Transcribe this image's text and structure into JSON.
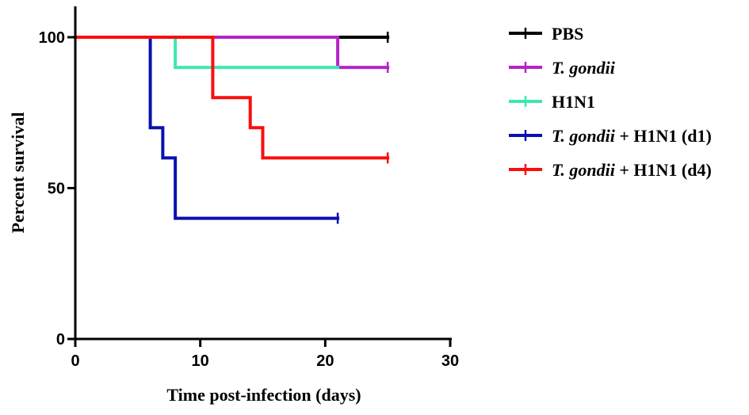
{
  "chart_data": {
    "type": "line",
    "subtype": "kaplan-meier survival",
    "title": "",
    "xlabel": "Time post-infection (days)",
    "ylabel": "Percent survival",
    "xlim": [
      0,
      30
    ],
    "ylim": [
      0,
      100
    ],
    "xticks": [
      "0",
      "10",
      "20",
      "30"
    ],
    "yticks": [
      "0",
      "50",
      "100"
    ],
    "legend_position": "right",
    "grid": false,
    "series": [
      {
        "name": "PBS",
        "name_parts": [
          {
            "text": "PBS",
            "italic": false
          }
        ],
        "color": "#000000",
        "steps": [
          [
            0,
            100
          ],
          [
            25,
            100
          ]
        ],
        "censor": [
          [
            25,
            100
          ]
        ]
      },
      {
        "name": "T. gondii",
        "name_parts": [
          {
            "text": "T. gondii",
            "italic": true
          }
        ],
        "color": "#b523c7",
        "steps": [
          [
            0,
            100
          ],
          [
            21,
            90
          ],
          [
            25,
            90
          ]
        ],
        "censor": [
          [
            25,
            90
          ]
        ]
      },
      {
        "name": "H1N1",
        "name_parts": [
          {
            "text": "H1N1",
            "italic": false
          }
        ],
        "color": "#3ee8b1",
        "steps": [
          [
            0,
            100
          ],
          [
            8,
            90
          ],
          [
            21,
            90
          ]
        ],
        "censor": []
      },
      {
        "name": "T. gondii + H1N1 (d1)",
        "name_parts": [
          {
            "text": "T. gondii",
            "italic": true
          },
          {
            "text": " + H1N1 (d1)",
            "italic": false
          }
        ],
        "color": "#0b10b0",
        "steps": [
          [
            0,
            100
          ],
          [
            6,
            70
          ],
          [
            7,
            60
          ],
          [
            8,
            40
          ],
          [
            21,
            40
          ]
        ],
        "censor": [
          [
            21,
            40
          ]
        ]
      },
      {
        "name": "T. gondii + H1N1 (d4)",
        "name_parts": [
          {
            "text": "T. gondii",
            "italic": true
          },
          {
            "text": " + H1N1 (d4)",
            "italic": false
          }
        ],
        "color": "#fa0d0d",
        "steps": [
          [
            0,
            100
          ],
          [
            11,
            80
          ],
          [
            14,
            70
          ],
          [
            15,
            60
          ],
          [
            25,
            60
          ]
        ],
        "censor": [
          [
            25,
            60
          ]
        ]
      }
    ]
  }
}
